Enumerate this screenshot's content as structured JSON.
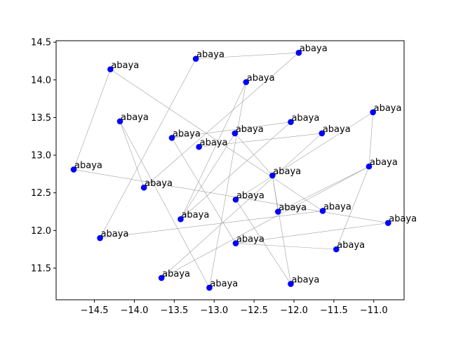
{
  "chart_data": {
    "type": "scatter",
    "title": "",
    "xlabel": "",
    "ylabel": "",
    "xlim": [
      -14.98,
      -10.62
    ],
    "ylim": [
      11.08,
      14.52
    ],
    "xticks": [
      -14.5,
      -14.0,
      -13.5,
      -13.0,
      -12.5,
      -12.0,
      -11.5,
      -11.0
    ],
    "xtick_labels": [
      "−14.5",
      "−14.0",
      "−13.5",
      "−13.0",
      "−12.5",
      "−12.0",
      "−11.5",
      "−11.0"
    ],
    "yticks": [
      11.5,
      12.0,
      12.5,
      13.0,
      13.5,
      14.0,
      14.5
    ],
    "ytick_labels": [
      "11.5",
      "12.0",
      "12.5",
      "13.0",
      "13.5",
      "14.0",
      "14.5"
    ],
    "grid": false,
    "point_color": "#0000ff",
    "line_color": "#a0a0a0",
    "points": [
      {
        "x": -14.76,
        "y": 12.81,
        "label": "abaya"
      },
      {
        "x": -14.3,
        "y": 14.14,
        "label": "abaya"
      },
      {
        "x": -11.64,
        "y": 12.26,
        "label": "abaya"
      },
      {
        "x": -13.42,
        "y": 12.15,
        "label": "abaya"
      },
      {
        "x": -12.04,
        "y": 13.44,
        "label": "abaya"
      },
      {
        "x": -14.18,
        "y": 13.45,
        "label": "abaya"
      },
      {
        "x": -13.06,
        "y": 11.24,
        "label": "abaya"
      },
      {
        "x": -12.74,
        "y": 13.29,
        "label": "abaya"
      },
      {
        "x": -13.19,
        "y": 13.11,
        "label": "abaya"
      },
      {
        "x": -11.65,
        "y": 13.29,
        "label": "abaya"
      },
      {
        "x": -12.27,
        "y": 12.73,
        "label": "abaya"
      },
      {
        "x": -12.04,
        "y": 11.29,
        "label": "abaya"
      },
      {
        "x": -11.06,
        "y": 12.85,
        "label": "abaya"
      },
      {
        "x": -11.01,
        "y": 13.57,
        "label": "abaya"
      },
      {
        "x": -13.53,
        "y": 13.23,
        "label": "abaya"
      },
      {
        "x": -12.73,
        "y": 12.41,
        "label": "abaya"
      },
      {
        "x": -12.2,
        "y": 12.25,
        "label": "abaya"
      },
      {
        "x": -10.82,
        "y": 12.1,
        "label": "abaya"
      },
      {
        "x": -12.73,
        "y": 11.83,
        "label": "abaya"
      },
      {
        "x": -11.47,
        "y": 11.75,
        "label": "abaya"
      },
      {
        "x": -13.66,
        "y": 11.37,
        "label": "abaya"
      },
      {
        "x": -14.43,
        "y": 11.9,
        "label": "abaya"
      },
      {
        "x": -13.88,
        "y": 12.57,
        "label": "abaya"
      },
      {
        "x": -13.23,
        "y": 14.28,
        "label": "abaya"
      },
      {
        "x": -11.94,
        "y": 14.36,
        "label": "abaya"
      },
      {
        "x": -12.6,
        "y": 13.97,
        "label": "abaya"
      }
    ],
    "connections": [
      [
        0,
        1
      ],
      [
        0,
        17
      ],
      [
        1,
        2
      ],
      [
        2,
        21
      ],
      [
        17,
        18
      ],
      [
        3,
        4
      ],
      [
        4,
        14
      ],
      [
        3,
        25
      ],
      [
        25,
        6
      ],
      [
        6,
        5
      ],
      [
        5,
        22
      ],
      [
        22,
        24
      ],
      [
        24,
        23
      ],
      [
        23,
        21
      ],
      [
        7,
        10
      ],
      [
        7,
        3
      ],
      [
        10,
        16
      ],
      [
        16,
        12
      ],
      [
        12,
        13
      ],
      [
        13,
        15
      ],
      [
        15,
        11
      ],
      [
        11,
        10
      ],
      [
        8,
        9
      ],
      [
        9,
        20
      ],
      [
        20,
        12
      ],
      [
        12,
        19
      ],
      [
        19,
        18
      ],
      [
        18,
        14
      ]
    ]
  }
}
